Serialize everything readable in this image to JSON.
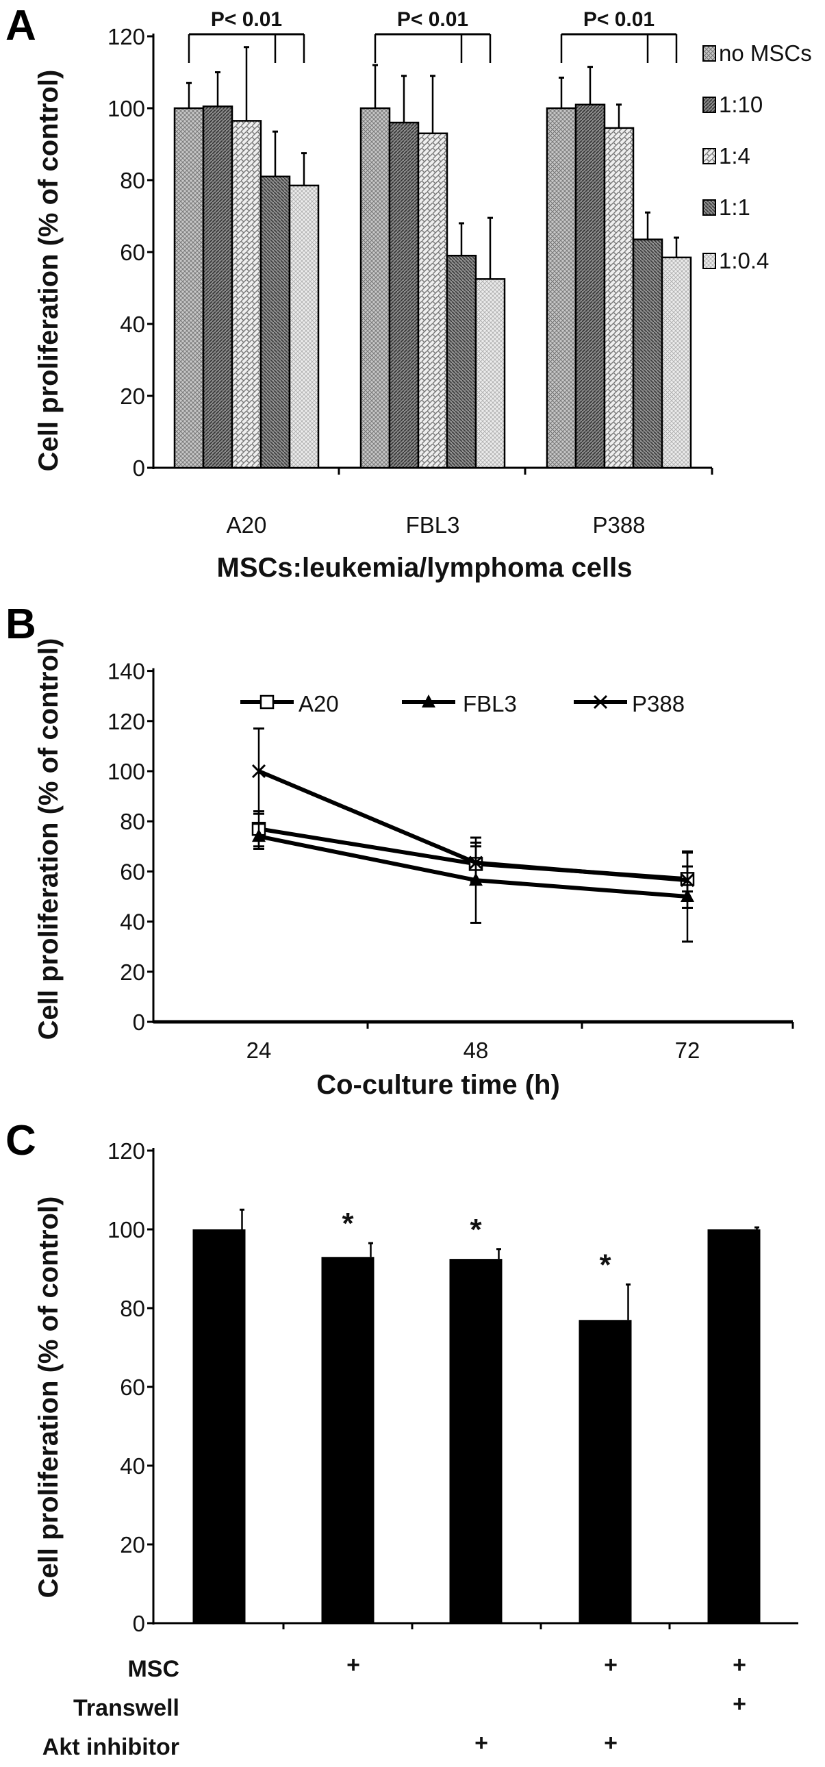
{
  "panel_labels": [
    "A",
    "B",
    "C"
  ],
  "chart_data": [
    {
      "panel": "A",
      "type": "bar",
      "ylabel": "Cell proliferation (% of  control)",
      "xlabel": "MSCs:leukemia/lymphoma cells",
      "ylim": [
        0,
        120
      ],
      "yticks": [
        "0",
        "20",
        "40",
        "60",
        "80",
        "100",
        "120"
      ],
      "categories": [
        "A20",
        "FBL3",
        "P388"
      ],
      "legend_position": "right",
      "series": [
        {
          "name": "no MSCs",
          "values": [
            100,
            100,
            100
          ],
          "errors": [
            7,
            12,
            8.5
          ],
          "color": "#b8b8b8"
        },
        {
          "name": "1:10",
          "values": [
            100.5,
            96,
            101
          ],
          "errors": [
            9.5,
            13,
            10.5
          ],
          "color": "#6e6e6e"
        },
        {
          "name": "1:4",
          "values": [
            96.5,
            93,
            94.5
          ],
          "errors": [
            20.5,
            16,
            6.5
          ],
          "color": "#d4d4d4"
        },
        {
          "name": "1:1",
          "values": [
            81,
            59,
            63.5
          ],
          "errors": [
            12.5,
            9,
            7.5
          ],
          "color": "#777777"
        },
        {
          "name": "1:0.4",
          "values": [
            78.5,
            52.5,
            58.5
          ],
          "errors": [
            9,
            17,
            5.5
          ],
          "color": "#e2e2e2"
        }
      ],
      "annotations": [
        "P< 0.01",
        "P< 0.01",
        "P< 0.01"
      ]
    },
    {
      "panel": "B",
      "type": "line",
      "ylabel": "Cell proliferation (% of  control)",
      "xlabel": "Co-culture time (h)",
      "ylim": [
        0,
        140
      ],
      "yticks": [
        "0",
        "20",
        "40",
        "60",
        "80",
        "100",
        "120",
        "140"
      ],
      "x": [
        24,
        48,
        72
      ],
      "xticks": [
        "24",
        "48",
        "72"
      ],
      "legend_position": "top",
      "series": [
        {
          "name": "A20",
          "marker": "open-square",
          "values": [
            77,
            63,
            57
          ],
          "errors": [
            7,
            7,
            5
          ]
        },
        {
          "name": "FBL3",
          "marker": "filled-triangle",
          "values": [
            74,
            56.5,
            50
          ],
          "errors": [
            5,
            17,
            18
          ]
        },
        {
          "name": "P388",
          "marker": "x",
          "values": [
            100,
            63.5,
            56.5
          ],
          "errors": [
            17,
            8,
            11
          ]
        }
      ]
    },
    {
      "panel": "C",
      "type": "bar",
      "ylabel": "Cell proliferation (% of  control)",
      "ylim": [
        0,
        120
      ],
      "yticks": [
        "0",
        "20",
        "40",
        "60",
        "80",
        "100",
        "120"
      ],
      "values": [
        100,
        93,
        92.5,
        77,
        100
      ],
      "errors": [
        5,
        3.5,
        2.5,
        9,
        0.5
      ],
      "significant": [
        false,
        true,
        true,
        true,
        false
      ],
      "significance_mark": "*",
      "color": "#000000",
      "condition_mark": "+",
      "conditions": [
        {
          "label": "MSC",
          "present": [
            false,
            true,
            false,
            true,
            true
          ]
        },
        {
          "label": "Transwell",
          "present": [
            false,
            false,
            false,
            false,
            true
          ]
        },
        {
          "label": "Akt inhibitor",
          "present": [
            false,
            false,
            true,
            true,
            false
          ]
        }
      ]
    }
  ]
}
